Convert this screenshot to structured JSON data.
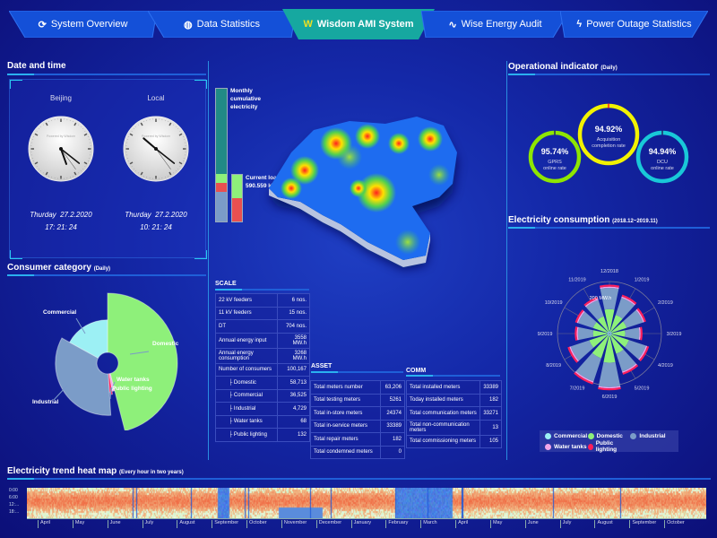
{
  "nav": {
    "tabs": [
      {
        "label": "System Overview",
        "icon": "refresh-icon",
        "active": false
      },
      {
        "label": "Data Statistics",
        "icon": "globe-icon",
        "active": false
      },
      {
        "label": "Wisdom AMI System",
        "icon": "wisdom-logo-icon",
        "active": true
      },
      {
        "label": "Wise Energy Audit",
        "icon": "pulse-icon",
        "active": false
      },
      {
        "label": "Power Outage Statistics",
        "icon": "lightning-icon",
        "active": false
      }
    ]
  },
  "datetime": {
    "title": "Date and time",
    "clocks": [
      {
        "label": "Beijing",
        "date": "Thurday  27.2.2020",
        "time": "17: 21: 24",
        "hour": 17,
        "minute": 21,
        "second": 24,
        "brand": "Powered by Wisdom"
      },
      {
        "label": "Local",
        "date": "Thurday  27.2.2020",
        "time": "10: 21: 24",
        "hour": 10,
        "minute": 21,
        "second": 24,
        "brand": "Powered by Wisdom"
      }
    ]
  },
  "electricity_bars": {
    "monthly_label": "Monthly cumulative electricity",
    "current_label": "Current load",
    "current_value": "590.559 kW"
  },
  "consumer_category": {
    "title": "Consumer category",
    "subtitle": "(Daily)",
    "colors": {
      "Domestic": "#8ef07a",
      "Water tanks": "#f4a6e8",
      "Public lighting": "#ff1e5a",
      "Industrial": "#7b9cc8",
      "Commercial": "#9cf0f4"
    },
    "slices": [
      {
        "name": "Domestic",
        "share": 46,
        "radius": 100
      },
      {
        "name": "Water tanks",
        "share": 1.5,
        "radius": 30
      },
      {
        "name": "Public lighting",
        "share": 1.5,
        "radius": 35
      },
      {
        "name": "Industrial",
        "share": 34,
        "radius": 70
      },
      {
        "name": "Commercial",
        "share": 17,
        "radius": 55
      }
    ]
  },
  "scale": {
    "title": "SCALE",
    "rows": [
      {
        "label": "22 kV feeders",
        "value": "6 nos."
      },
      {
        "label": "11 kV feeders",
        "value": "15 nos."
      },
      {
        "label": "DT",
        "value": "704 nos."
      },
      {
        "label": "Annual energy input",
        "value": "3558 MW.h"
      },
      {
        "label": "Annual energy consumption",
        "value": "3268 MW.h"
      },
      {
        "label": "Number of consumers",
        "value": "100,167"
      },
      {
        "label": "Domestic",
        "value": "58,713"
      },
      {
        "label": "Commercial",
        "value": "36,525"
      },
      {
        "label": "Industrial",
        "value": "4,729"
      },
      {
        "label": "Water tanks",
        "value": "68"
      },
      {
        "label": "Public lighting",
        "value": "132"
      }
    ]
  },
  "asset": {
    "title": "ASSET",
    "rows": [
      {
        "label": "Total meters number",
        "value": "63,206"
      },
      {
        "label": "Total testing meters",
        "value": "5261"
      },
      {
        "label": "Total in-store meters",
        "value": "24374"
      },
      {
        "label": "Total in-service meters",
        "value": "33389"
      },
      {
        "label": "Total repair meters",
        "value": "182"
      },
      {
        "label": "Total condemned meters",
        "value": "0"
      }
    ]
  },
  "comm": {
    "title": "COMM",
    "rows": [
      {
        "label": "Total installed meters",
        "value": "33389"
      },
      {
        "label": "Today installed meters",
        "value": "182"
      },
      {
        "label": "Total communication meters",
        "value": "33271"
      },
      {
        "label": "Total non-communication meters",
        "value": "13"
      },
      {
        "label": "Total commissioning meters",
        "value": "105"
      }
    ]
  },
  "operational": {
    "title": "Operational indicator",
    "subtitle": "(Daily)",
    "indicators": [
      {
        "value": "94.92%",
        "label": "Acquisition completion rate",
        "percent": 94.92,
        "color": "#f2f200"
      },
      {
        "value": "95.74%",
        "label": "GPRS online rate",
        "percent": 95.74,
        "color": "#8ee600"
      },
      {
        "value": "94.94%",
        "label": "DCU online rate",
        "percent": 94.94,
        "color": "#19c8d8"
      }
    ]
  },
  "consumption": {
    "title": "Electricity consumption",
    "subtitle": "(2018.12~2019.11)",
    "axis_label": "200 MW.h",
    "chart_data": {
      "type": "polar-bar",
      "unit": "MW.h",
      "categories": [
        "12/2018",
        "1/2019",
        "2/2019",
        "3/2019",
        "4/2019",
        "5/2019",
        "6/2019",
        "7/2019",
        "8/2019",
        "9/2019",
        "10/2019",
        "11/2019"
      ],
      "series": [
        {
          "name": "Commercial",
          "values": [
            15,
            15,
            15,
            15,
            15,
            15,
            15,
            15,
            15,
            15,
            15,
            15
          ]
        },
        {
          "name": "Domestic",
          "values": [
            140,
            110,
            100,
            85,
            115,
            120,
            170,
            150,
            120,
            90,
            95,
            100
          ]
        },
        {
          "name": "Industrial",
          "values": [
            135,
            115,
            110,
            90,
            115,
            120,
            155,
            155,
            125,
            95,
            100,
            110
          ]
        },
        {
          "name": "Water tanks",
          "values": [
            8,
            8,
            8,
            8,
            8,
            8,
            8,
            8,
            8,
            8,
            8,
            8
          ]
        },
        {
          "name": "Public lighting",
          "values": [
            12,
            12,
            12,
            12,
            12,
            12,
            12,
            12,
            12,
            12,
            12,
            12
          ]
        }
      ]
    },
    "legend": [
      "Commercial",
      "Domestic",
      "Industrial",
      "Water tanks",
      "Public lighting"
    ]
  },
  "heatmap": {
    "title": "Electricity trend heat map",
    "subtitle": "(Every hour in two years)",
    "y_labels": [
      "0:00",
      "6:00",
      "12:...",
      "18:..."
    ],
    "months": [
      "April",
      "May",
      "June",
      "July",
      "August",
      "September",
      "October",
      "November",
      "December",
      "January",
      "February",
      "March",
      "April",
      "May",
      "June",
      "July",
      "August",
      "September",
      "October"
    ]
  }
}
